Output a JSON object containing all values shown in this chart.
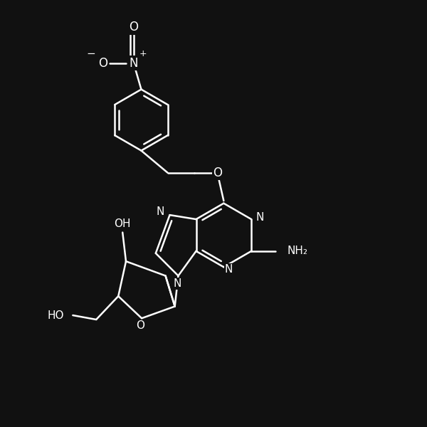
{
  "bg_color": "#111111",
  "line_color": "#ffffff",
  "lw": 1.8,
  "fs": 11,
  "figsize": [
    6.0,
    6.0
  ],
  "dpi": 100,
  "xlim": [
    0,
    10
  ],
  "ylim": [
    0,
    10
  ]
}
